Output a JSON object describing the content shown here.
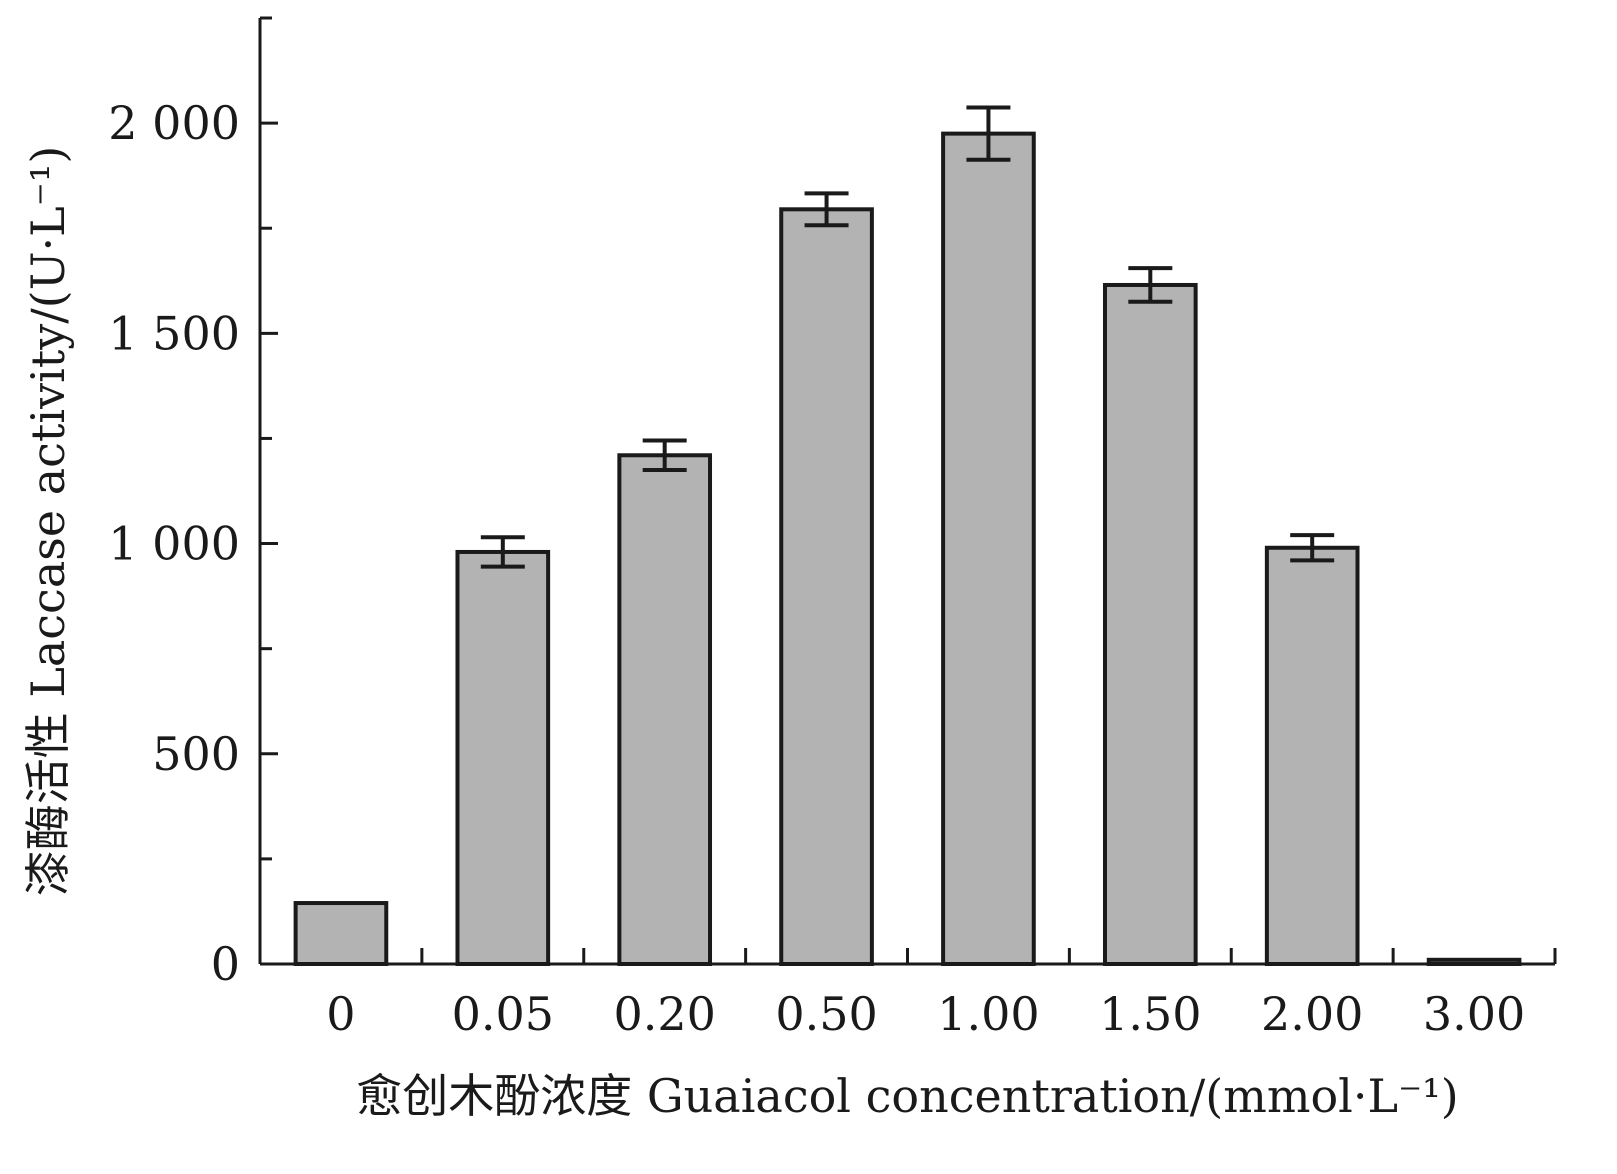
{
  "chart_data": {
    "type": "bar",
    "categories": [
      "0",
      "0.05",
      "0.20",
      "0.50",
      "1.00",
      "1.50",
      "2.00",
      "3.00"
    ],
    "series": [
      {
        "values": [
          145,
          980,
          1210,
          1795,
          1975,
          1615,
          990,
          10
        ],
        "errors": [
          0,
          35,
          35,
          38,
          62,
          40,
          30,
          0
        ]
      }
    ],
    "ylim": [
      0,
      2250
    ],
    "major_ticks": [
      0,
      500,
      1000,
      1500,
      2000
    ],
    "y_tick_labels": [
      "0",
      "500",
      "1 000",
      "1 500",
      "2 000"
    ],
    "minor_ticks": [
      250,
      750,
      1250,
      1750,
      2250
    ],
    "xlabel": "愈创木酚浓度 Guaiacol concentration/(mmol·L⁻¹)",
    "ylabel": "漆酶活性 Laccase activity/(U·L⁻¹)",
    "bar_color": "#b3b3b3",
    "edge_color": "#1a1a1a",
    "grid": false,
    "legend": "none"
  }
}
